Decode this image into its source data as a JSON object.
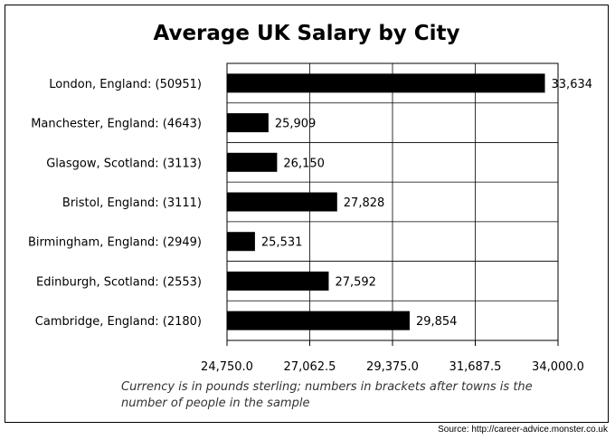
{
  "chart_data": {
    "type": "bar",
    "orientation": "horizontal",
    "title": "Average UK Salary by City",
    "categories": [
      "London, England: (50951)",
      "Manchester, England: (4643)",
      "Glasgow, Scotland: (3113)",
      "Bristol, England: (3111)",
      "Birmingham, England: (2949)",
      "Edinburgh, Scotland: (2553)",
      "Cambridge, England: (2180)"
    ],
    "values": [
      33634,
      25909,
      26150,
      27828,
      25531,
      27592,
      29854
    ],
    "value_labels": [
      "33,634",
      "25,909",
      "26,150",
      "27,828",
      "25,531",
      "27,592",
      "29,854"
    ],
    "xlim": [
      24750,
      34000
    ],
    "xticks": [
      24750,
      27062.5,
      29375,
      31687.5,
      34000
    ],
    "xtick_labels": [
      "24,750.0",
      "27,062.5",
      "29,375.0",
      "31,687.5",
      "34,000.0"
    ],
    "grid": true,
    "bar_color": "#000000"
  },
  "note": "Currency is in pounds sterling; numbers in brackets after towns is the number of people in the sample",
  "source": "Source: http://career-advice.monster.co.uk"
}
